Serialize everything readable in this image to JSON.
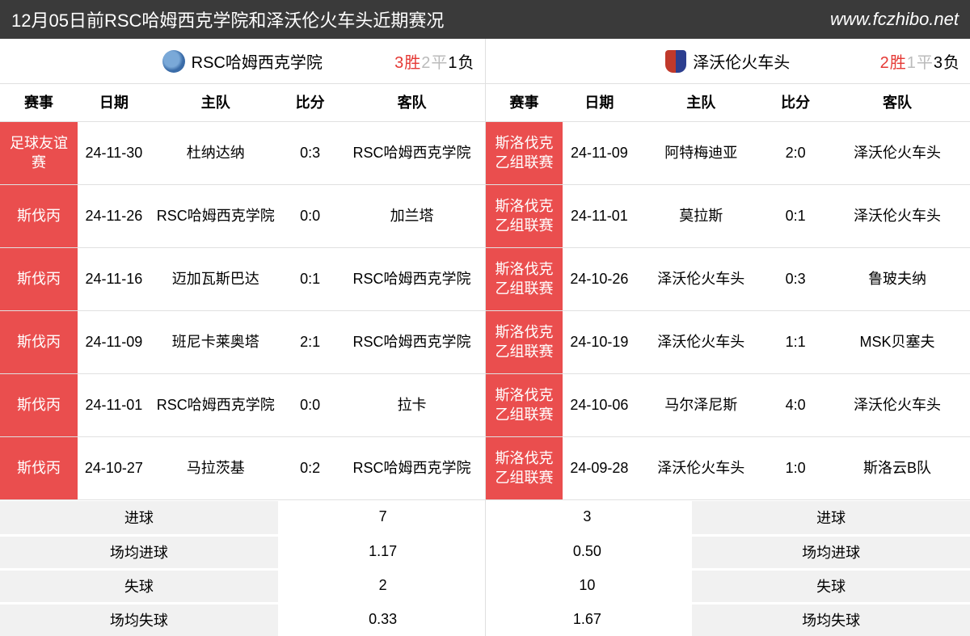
{
  "title": "12月05日前RSC哈姆西克学院和泽沃伦火车头近期赛况",
  "site_url": "www.fczhibo.net",
  "colors": {
    "titlebar_bg": "#3a3a3a",
    "event_cell_bg": "#ea4e4e",
    "win_text": "#e53935",
    "draw_text": "#bbbbbb",
    "stats_label_bg": "#f1f1f1",
    "border": "#e0e0e0"
  },
  "columns": {
    "event": "赛事",
    "date": "日期",
    "home": "主队",
    "score": "比分",
    "away": "客队"
  },
  "left": {
    "team_name": "RSC哈姆西克学院",
    "record": {
      "win": "3胜",
      "draw": "2平",
      "loss": "1负"
    },
    "rows": [
      {
        "event": "足球友谊赛",
        "date": "24-11-30",
        "home": "杜纳达纳",
        "score": "0:3",
        "away": "RSC哈姆西克学院"
      },
      {
        "event": "斯伐丙",
        "date": "24-11-26",
        "home": "RSC哈姆西克学院",
        "score": "0:0",
        "away": "加兰塔"
      },
      {
        "event": "斯伐丙",
        "date": "24-11-16",
        "home": "迈加瓦斯巴达",
        "score": "0:1",
        "away": "RSC哈姆西克学院"
      },
      {
        "event": "斯伐丙",
        "date": "24-11-09",
        "home": "班尼卡莱奥塔",
        "score": "2:1",
        "away": "RSC哈姆西克学院"
      },
      {
        "event": "斯伐丙",
        "date": "24-11-01",
        "home": "RSC哈姆西克学院",
        "score": "0:0",
        "away": "拉卡"
      },
      {
        "event": "斯伐丙",
        "date": "24-10-27",
        "home": "马拉茨基",
        "score": "0:2",
        "away": "RSC哈姆西克学院"
      }
    ],
    "stats": {
      "goals_label": "进球",
      "goals": "7",
      "avg_goals_label": "场均进球",
      "avg_goals": "1.17",
      "conceded_label": "失球",
      "conceded": "2",
      "avg_conceded_label": "场均失球",
      "avg_conceded": "0.33"
    }
  },
  "right": {
    "team_name": "泽沃伦火车头",
    "record": {
      "win": "2胜",
      "draw": "1平",
      "loss": "3负"
    },
    "rows": [
      {
        "event": "斯洛伐克乙组联赛",
        "date": "24-11-09",
        "home": "阿特梅迪亚",
        "score": "2:0",
        "away": "泽沃伦火车头"
      },
      {
        "event": "斯洛伐克乙组联赛",
        "date": "24-11-01",
        "home": "莫拉斯",
        "score": "0:1",
        "away": "泽沃伦火车头"
      },
      {
        "event": "斯洛伐克乙组联赛",
        "date": "24-10-26",
        "home": "泽沃伦火车头",
        "score": "0:3",
        "away": "鲁玻夫纳"
      },
      {
        "event": "斯洛伐克乙组联赛",
        "date": "24-10-19",
        "home": "泽沃伦火车头",
        "score": "1:1",
        "away": "MSK贝塞夫"
      },
      {
        "event": "斯洛伐克乙组联赛",
        "date": "24-10-06",
        "home": "马尔泽尼斯",
        "score": "4:0",
        "away": "泽沃伦火车头"
      },
      {
        "event": "斯洛伐克乙组联赛",
        "date": "24-09-28",
        "home": "泽沃伦火车头",
        "score": "1:0",
        "away": "斯洛云B队"
      }
    ],
    "stats": {
      "goals_label": "进球",
      "goals": "3",
      "avg_goals_label": "场均进球",
      "avg_goals": "0.50",
      "conceded_label": "失球",
      "conceded": "10",
      "avg_conceded_label": "场均失球",
      "avg_conceded": "1.67"
    }
  }
}
